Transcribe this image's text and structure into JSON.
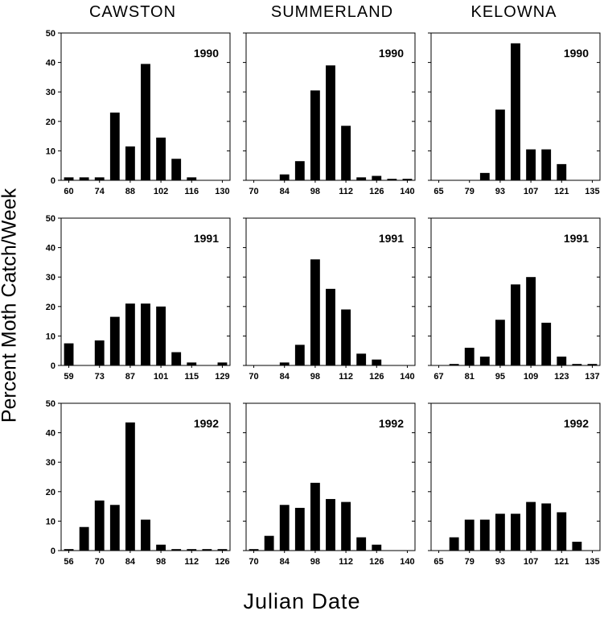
{
  "figure": {
    "column_titles": [
      "CAWSTON",
      "SUMMERLAND",
      "KELOWNA"
    ],
    "ylabel": "Percent Moth Catch/Week",
    "xlabel": "Julian Date"
  },
  "chart_data": [
    {
      "type": "bar",
      "site": "CAWSTON",
      "year": "1990",
      "x": [
        60,
        67,
        74,
        81,
        88,
        95,
        102,
        109,
        116,
        123,
        130
      ],
      "values": [
        1,
        1,
        1,
        23,
        11.5,
        39.5,
        14.5,
        7.3,
        1,
        0,
        0
      ],
      "xticks": [
        60,
        74,
        88,
        102,
        116,
        130
      ],
      "yticks": [
        0,
        10,
        20,
        30,
        40,
        50
      ],
      "ylim": [
        0,
        50
      ],
      "xlabel": "Julian Date",
      "ylabel": "Percent Moth Catch/Week"
    },
    {
      "type": "bar",
      "site": "SUMMERLAND",
      "year": "1990",
      "x": [
        70,
        77,
        84,
        91,
        98,
        105,
        112,
        119,
        126,
        133,
        140
      ],
      "values": [
        0,
        0,
        2,
        6.5,
        30.5,
        39,
        18.5,
        1,
        1.5,
        0.5,
        0.5
      ],
      "xticks": [
        70,
        84,
        98,
        112,
        126,
        140
      ],
      "yticks": [
        0,
        10,
        20,
        30,
        40,
        50
      ],
      "ylim": [
        0,
        50
      ],
      "xlabel": "Julian Date",
      "ylabel": "Percent Moth Catch/Week"
    },
    {
      "type": "bar",
      "site": "KELOWNA",
      "year": "1990",
      "x": [
        65,
        72,
        79,
        86,
        93,
        100,
        107,
        114,
        121,
        128,
        135
      ],
      "values": [
        0,
        0,
        0,
        2.5,
        24,
        46.5,
        10.5,
        10.5,
        5.5,
        0,
        0
      ],
      "xticks": [
        65,
        79,
        93,
        107,
        121,
        135
      ],
      "yticks": [
        0,
        10,
        20,
        30,
        40,
        50
      ],
      "ylim": [
        0,
        50
      ],
      "xlabel": "Julian Date",
      "ylabel": "Percent Moth Catch/Week"
    },
    {
      "type": "bar",
      "site": "CAWSTON",
      "year": "1991",
      "x": [
        59,
        66,
        73,
        80,
        87,
        94,
        101,
        108,
        115,
        122,
        129
      ],
      "values": [
        7.5,
        0,
        8.5,
        16.5,
        21,
        21,
        20,
        4.5,
        1,
        0,
        1
      ],
      "xticks": [
        59,
        73,
        87,
        101,
        115,
        129
      ],
      "yticks": [
        0,
        10,
        20,
        30,
        40,
        50
      ],
      "ylim": [
        0,
        50
      ],
      "xlabel": "Julian Date",
      "ylabel": "Percent Moth Catch/Week"
    },
    {
      "type": "bar",
      "site": "SUMMERLAND",
      "year": "1991",
      "x": [
        70,
        77,
        84,
        91,
        98,
        105,
        112,
        119,
        126,
        133,
        140
      ],
      "values": [
        0,
        0,
        1,
        7,
        36,
        26,
        19,
        4,
        2,
        0,
        0
      ],
      "xticks": [
        70,
        84,
        98,
        112,
        126,
        140
      ],
      "yticks": [
        0,
        10,
        20,
        30,
        40,
        50
      ],
      "ylim": [
        0,
        50
      ],
      "xlabel": "Julian Date",
      "ylabel": "Percent Moth Catch/Week"
    },
    {
      "type": "bar",
      "site": "KELOWNA",
      "year": "1991",
      "x": [
        67,
        74,
        81,
        88,
        95,
        102,
        109,
        116,
        123,
        130,
        137
      ],
      "values": [
        0,
        0.5,
        6,
        3,
        15.5,
        27.5,
        30,
        14.5,
        3,
        0.5,
        0.5
      ],
      "xticks": [
        67,
        81,
        95,
        109,
        123,
        137
      ],
      "yticks": [
        0,
        10,
        20,
        30,
        40,
        50
      ],
      "ylim": [
        0,
        50
      ],
      "xlabel": "Julian Date",
      "ylabel": "Percent Moth Catch/Week"
    },
    {
      "type": "bar",
      "site": "CAWSTON",
      "year": "1992",
      "x": [
        56,
        63,
        70,
        77,
        84,
        91,
        98,
        105,
        112,
        119,
        126
      ],
      "values": [
        0.5,
        8,
        17,
        15.5,
        43.5,
        10.5,
        2,
        0.5,
        0.5,
        0.5,
        0.5
      ],
      "xticks": [
        56,
        70,
        84,
        98,
        112,
        126
      ],
      "yticks": [
        0,
        10,
        20,
        30,
        40,
        50
      ],
      "ylim": [
        0,
        50
      ],
      "xlabel": "Julian Date",
      "ylabel": "Percent Moth Catch/Week"
    },
    {
      "type": "bar",
      "site": "SUMMERLAND",
      "year": "1992",
      "x": [
        70,
        77,
        84,
        91,
        98,
        105,
        112,
        119,
        126,
        133,
        140
      ],
      "values": [
        0.5,
        5,
        15.5,
        14.5,
        23,
        17.5,
        16.5,
        4.5,
        2,
        0,
        0
      ],
      "xticks": [
        70,
        84,
        98,
        112,
        126,
        140
      ],
      "yticks": [
        0,
        10,
        20,
        30,
        40,
        50
      ],
      "ylim": [
        0,
        50
      ],
      "xlabel": "Julian Date",
      "ylabel": "Percent Moth Catch/Week"
    },
    {
      "type": "bar",
      "site": "KELOWNA",
      "year": "1992",
      "x": [
        65,
        72,
        79,
        86,
        93,
        100,
        107,
        114,
        121,
        128,
        135
      ],
      "values": [
        0,
        4.5,
        10.5,
        10.5,
        12.5,
        12.5,
        16.5,
        16,
        13,
        3,
        0
      ],
      "xticks": [
        65,
        79,
        93,
        107,
        121,
        135
      ],
      "yticks": [
        0,
        10,
        20,
        30,
        40,
        50
      ],
      "ylim": [
        0,
        50
      ],
      "xlabel": "Julian Date",
      "ylabel": "Percent Moth Catch/Week"
    }
  ]
}
